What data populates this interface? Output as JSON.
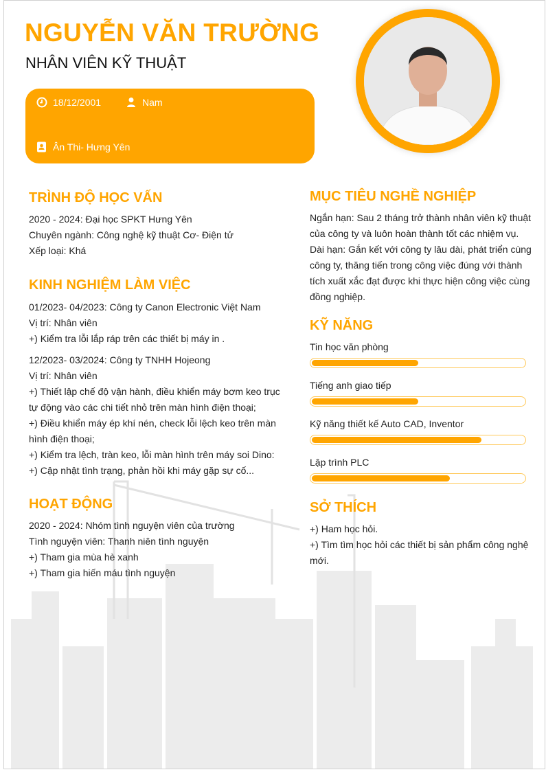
{
  "header": {
    "name": "NGUYỄN VĂN TRƯỜNG",
    "title": "NHÂN VIÊN KỸ THUẬT"
  },
  "info": {
    "birthday": "18/12/2001",
    "gender": "Nam",
    "address": "Ân Thi- Hưng Yên",
    "birthday_icon": "clock-icon",
    "gender_icon": "user-icon",
    "address_icon": "address-book-icon"
  },
  "colors": {
    "accent": "#FFA500"
  },
  "education": {
    "heading": "TRÌNH ĐỘ HỌC VẤN",
    "lines": [
      "2020 - 2024:  Đại học SPKT Hưng Yên",
      "Chuyên ngành: Công nghệ kỹ thuật Cơ- Điện tử",
      "Xếp loại: Khá"
    ]
  },
  "experience": {
    "heading": "KINH NGHIỆM LÀM VIỆC",
    "jobs": [
      {
        "lines": [
          "01/2023- 04/2023:  Công ty Canon Electronic Việt Nam",
          "Vị trí: Nhân viên",
          "+) Kiểm tra lỗi lắp ráp trên các thiết bị máy in ."
        ]
      },
      {
        "lines": [
          "12/2023- 03/2024:  Công ty TNHH Hojeong",
          "Vị trí: Nhân viên",
          "+) Thiết lập chế độ vận hành, điều khiển máy bơm keo trục tự động vào các chi tiết nhỏ trên màn hình điện thoại;",
          "+) Điều khiển máy ép khí nén, check lỗi lệch keo trên màn hình điện thoại;",
          "+) Kiểm tra lệch, tràn keo, lỗi màn hình trên máy soi Dino:",
          "+) Cập nhật tình trạng, phản hồi khi máy gặp sự cố..."
        ]
      }
    ]
  },
  "activities": {
    "heading": "HOẠT ĐỘNG",
    "lines": [
      "2020 - 2024:  Nhóm tình nguyện viên của trường",
      "Tình nguyện viên: Thanh niên tình nguyện",
      "+) Tham gia mùa hè xanh",
      "+) Tham gia hiến máu tình nguyện"
    ]
  },
  "objective": {
    "heading": "MỤC TIÊU NGHỀ NGHIỆP",
    "lines": [
      "Ngắn hạn: Sau 2 tháng trở thành nhân viên kỹ thuật của công ty và luôn hoàn thành tốt các nhiệm vụ.",
      "Dài hạn: Gắn kết với công ty lâu dài, phát triển cùng công ty, thăng tiến trong công việc đúng với thành tích xuất xắc đạt được khi thực hiện công việc cùng đồng nghiệp."
    ]
  },
  "skills": {
    "heading": "KỸ NĂNG",
    "items": [
      {
        "label": "Tin học văn phòng",
        "level_percent": 50
      },
      {
        "label": "Tiếng anh giao tiếp",
        "level_percent": 50
      },
      {
        "label": "Kỹ năng thiết kế Auto CAD, Inventor",
        "level_percent": 80
      },
      {
        "label": "Lập trình PLC",
        "level_percent": 65
      }
    ]
  },
  "hobbies": {
    "heading": "SỞ THÍCH",
    "lines": [
      "+) Ham học hỏi.",
      "+) Tìm tìm học hỏi các thiết bị sản phẩm công nghệ mới."
    ]
  }
}
